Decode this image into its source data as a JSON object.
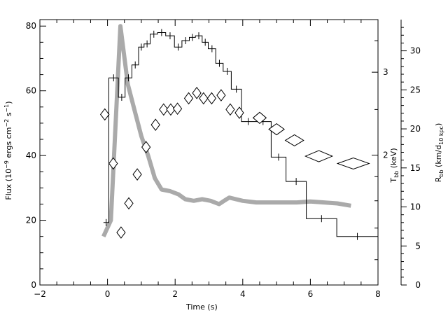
{
  "chart_data": {
    "type": "line",
    "title": "",
    "xlabel": "Time (s)",
    "ylabel_parts": [
      "Flux (10",
      "−9",
      " ergs cm",
      "−2",
      " s",
      "−1",
      ")"
    ],
    "xlim": [
      -2,
      8
    ],
    "ylim": [
      0,
      82
    ],
    "x_ticks": [
      "−2",
      "0",
      "2",
      "4",
      "6",
      "8"
    ],
    "y_ticks": [
      "0",
      "20",
      "40",
      "60",
      "80"
    ],
    "right_axes": [
      {
        "label_main": "T",
        "label_sub": "bb",
        "label_rest": " (keV)",
        "tick_labels": [
          "2",
          "3"
        ],
        "tick_values": [
          2,
          3
        ],
        "scale": "log",
        "range": [
          1.06,
          3.88
        ]
      },
      {
        "label_main": "R",
        "label_sub": "bb",
        "label_rest": " (km/d",
        "label_sub2": "10 kpc",
        "label_end": ")",
        "tick_labels": [
          "0",
          "5",
          "10",
          "15",
          "20",
          "25",
          "30"
        ],
        "tick_values": [
          0,
          5,
          10,
          15,
          20,
          25,
          30
        ],
        "range": [
          0,
          34
        ]
      }
    ],
    "series": [
      {
        "style": "histogram",
        "color": "#000000",
        "bins": [
          [
            -0.12,
            0.04,
            19.3
          ],
          [
            0.04,
            0.32,
            64
          ],
          [
            0.32,
            0.52,
            58
          ],
          [
            0.52,
            0.72,
            64
          ],
          [
            0.72,
            0.92,
            68
          ],
          [
            0.92,
            1.08,
            73.5
          ],
          [
            1.08,
            1.26,
            74.5
          ],
          [
            1.26,
            1.48,
            77.5
          ],
          [
            1.48,
            1.72,
            78
          ],
          [
            1.72,
            1.98,
            77
          ],
          [
            1.98,
            2.2,
            73.5
          ],
          [
            2.2,
            2.42,
            75.5
          ],
          [
            2.42,
            2.6,
            76.5
          ],
          [
            2.6,
            2.8,
            77
          ],
          [
            2.8,
            2.98,
            75
          ],
          [
            2.98,
            3.2,
            73
          ],
          [
            3.2,
            3.42,
            68.5
          ],
          [
            3.42,
            3.66,
            66
          ],
          [
            3.66,
            3.96,
            60.5
          ],
          [
            3.96,
            4.36,
            50.5
          ],
          [
            4.36,
            4.84,
            50.5
          ],
          [
            4.84,
            5.28,
            39.5
          ],
          [
            5.28,
            5.88,
            32
          ],
          [
            5.88,
            6.78,
            20.5
          ],
          [
            6.78,
            8.0,
            15
          ]
        ]
      },
      {
        "style": "thick-line",
        "color": "#aaaaaa",
        "x": [
          -0.12,
          0.1,
          0.38,
          0.6,
          0.8,
          1.0,
          1.2,
          1.4,
          1.6,
          1.85,
          2.1,
          2.3,
          2.55,
          2.8,
          3.05,
          3.3,
          3.45,
          3.6,
          3.8,
          4.0,
          4.4,
          4.8,
          5.2,
          5.6,
          6.0,
          6.4,
          6.8,
          7.2
        ],
        "y": [
          15,
          20,
          80,
          62,
          54,
          46,
          40,
          33,
          29.5,
          29,
          28,
          26.5,
          26,
          26.5,
          26,
          25,
          26,
          27,
          26.5,
          26,
          25.5,
          25.5,
          25.5,
          25.5,
          25.8,
          25.5,
          25.2,
          24.5
        ]
      },
      {
        "style": "diamond-markers",
        "color": "#000000",
        "axis": "T_bb",
        "points": [
          [
            -0.08,
            2.44,
            0.1
          ],
          [
            0.17,
            1.92,
            0.08
          ],
          [
            0.4,
            1.37,
            0.07
          ],
          [
            0.63,
            1.58,
            0.07
          ],
          [
            0.88,
            1.82,
            0.08
          ],
          [
            1.14,
            2.08,
            0.08
          ],
          [
            1.42,
            2.32,
            0.08
          ],
          [
            1.66,
            2.5,
            0.08
          ],
          [
            1.87,
            2.5,
            0.08
          ],
          [
            2.07,
            2.51,
            0.08
          ],
          [
            2.4,
            2.64,
            0.08
          ],
          [
            2.64,
            2.71,
            0.08
          ],
          [
            2.84,
            2.64,
            0.08
          ],
          [
            3.08,
            2.64,
            0.08
          ],
          [
            3.36,
            2.68,
            0.08
          ],
          [
            3.63,
            2.5,
            0.08
          ],
          [
            3.9,
            2.46,
            0.08
          ],
          [
            4.5,
            2.4,
            0.18
          ],
          [
            5.0,
            2.27,
            0.22
          ],
          [
            5.53,
            2.15,
            0.27
          ],
          [
            6.25,
            1.99,
            0.42
          ],
          [
            7.27,
            1.92,
            0.5
          ]
        ]
      }
    ]
  }
}
